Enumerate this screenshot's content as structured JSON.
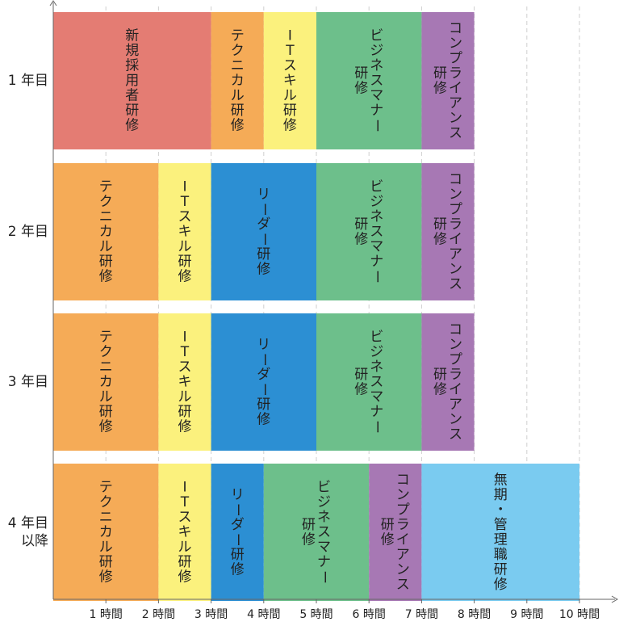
{
  "chart_data": {
    "type": "bar",
    "orientation": "horizontal-stacked",
    "xlabel": "",
    "ylabel": "",
    "xlim": [
      0,
      10.7
    ],
    "grid": true,
    "x_ticks": [
      {
        "value": 1,
        "label": "1 時間"
      },
      {
        "value": 2,
        "label": "2 時間"
      },
      {
        "value": 3,
        "label": "3 時間"
      },
      {
        "value": 4,
        "label": "4 時間"
      },
      {
        "value": 5,
        "label": "5 時間"
      },
      {
        "value": 6,
        "label": "6 時間"
      },
      {
        "value": 7,
        "label": "7 時間"
      },
      {
        "value": 8,
        "label": "8 時間"
      },
      {
        "value": 9,
        "label": "9 時間"
      },
      {
        "value": 10,
        "label": "10 時間"
      }
    ],
    "rows": [
      {
        "label": [
          "1 年目"
        ],
        "segments": [
          {
            "name": "新規採用者研修",
            "value": 3,
            "color": "#E47C73",
            "lines": [
              "新規採用者研修"
            ]
          },
          {
            "name": "テクニカル研修",
            "value": 1,
            "color": "#F5AB57",
            "lines": [
              "テクニカル研修"
            ]
          },
          {
            "name": "ITスキル研修",
            "value": 1,
            "color": "#FBF17D",
            "lines": [
              "ITスキル研修"
            ]
          },
          {
            "name": "ビジネスマナー研修",
            "value": 2,
            "color": "#6DBF8B",
            "lines": [
              "ビジネスマナー",
              "研修"
            ]
          },
          {
            "name": "コンプライアンス研修",
            "value": 1,
            "color": "#A778B4",
            "lines": [
              "コンプライアンス",
              "研修"
            ]
          }
        ]
      },
      {
        "label": [
          "2 年目"
        ],
        "segments": [
          {
            "name": "テクニカル研修",
            "value": 2,
            "color": "#F5AB57",
            "lines": [
              "テクニカル研修"
            ]
          },
          {
            "name": "ITスキル研修",
            "value": 1,
            "color": "#FBF17D",
            "lines": [
              "ITスキル研修"
            ]
          },
          {
            "name": "リーダー研修",
            "value": 2,
            "color": "#2C8FD3",
            "lines": [
              "リーダー研修"
            ]
          },
          {
            "name": "ビジネスマナー研修",
            "value": 2,
            "color": "#6DBF8B",
            "lines": [
              "ビジネスマナー",
              "研修"
            ]
          },
          {
            "name": "コンプライアンス研修",
            "value": 1,
            "color": "#A778B4",
            "lines": [
              "コンプライアンス",
              "研修"
            ]
          }
        ]
      },
      {
        "label": [
          "3 年目"
        ],
        "segments": [
          {
            "name": "テクニカル研修",
            "value": 2,
            "color": "#F5AB57",
            "lines": [
              "テクニカル研修"
            ]
          },
          {
            "name": "ITスキル研修",
            "value": 1,
            "color": "#FBF17D",
            "lines": [
              "ITスキル研修"
            ]
          },
          {
            "name": "リーダー研修",
            "value": 2,
            "color": "#2C8FD3",
            "lines": [
              "リーダー研修"
            ]
          },
          {
            "name": "ビジネスマナー研修",
            "value": 2,
            "color": "#6DBF8B",
            "lines": [
              "ビジネスマナー",
              "研修"
            ]
          },
          {
            "name": "コンプライアンス研修",
            "value": 1,
            "color": "#A778B4",
            "lines": [
              "コンプライアンス",
              "研修"
            ]
          }
        ]
      },
      {
        "label": [
          "4 年目",
          "以降"
        ],
        "segments": [
          {
            "name": "テクニカル研修",
            "value": 2,
            "color": "#F5AB57",
            "lines": [
              "テクニカル研修"
            ]
          },
          {
            "name": "ITスキル研修",
            "value": 1,
            "color": "#FBF17D",
            "lines": [
              "ITスキル研修"
            ]
          },
          {
            "name": "リーダー研修",
            "value": 1,
            "color": "#2C8FD3",
            "lines": [
              "リーダー研修"
            ]
          },
          {
            "name": "ビジネスマナー研修",
            "value": 2,
            "color": "#6DBF8B",
            "lines": [
              "ビジネスマナー",
              "研修"
            ]
          },
          {
            "name": "コンプライアンス研修",
            "value": 1,
            "color": "#A778B4",
            "lines": [
              "コンプライアンス",
              "研修"
            ]
          },
          {
            "name": "無期・管理職研修",
            "value": 3,
            "color": "#7ACBF0",
            "lines": [
              "無期・管理職研修"
            ]
          }
        ]
      }
    ]
  }
}
